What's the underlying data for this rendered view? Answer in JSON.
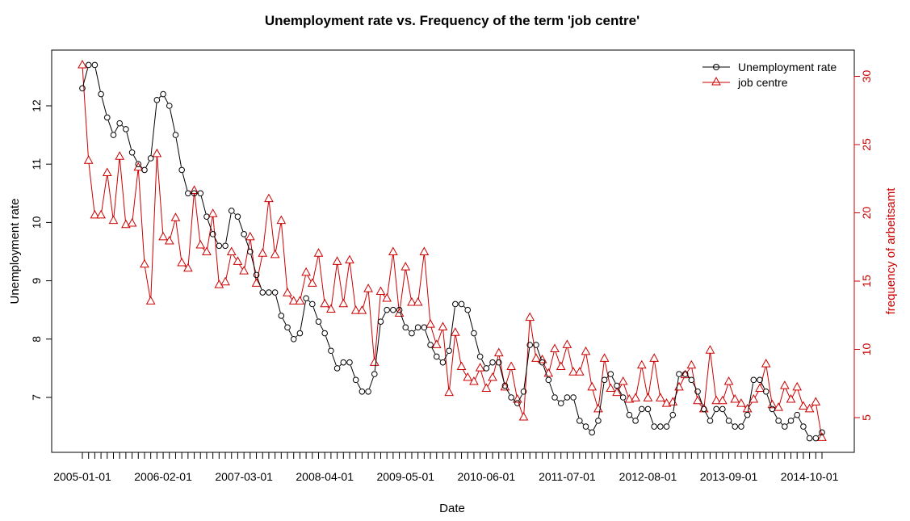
{
  "chart_data": {
    "type": "line",
    "title": "Unemployment rate vs. Frequency of the term 'job centre'",
    "xlabel": "Date",
    "ylabel_left": "Unemployment rate",
    "ylabel_right": "frequency of arbeitsamt",
    "x_tick_labels": [
      "2005-01-01",
      "2006-02-01",
      "2007-03-01",
      "2008-04-01",
      "2009-05-01",
      "2010-06-01",
      "2011-07-01",
      "2012-08-01",
      "2013-09-01",
      "2014-10-01"
    ],
    "x_tick_indices": [
      0,
      13,
      26,
      39,
      52,
      65,
      78,
      91,
      104,
      117
    ],
    "y_left_ticks": [
      7,
      8,
      9,
      10,
      11,
      12
    ],
    "y_right_ticks": [
      5,
      10,
      15,
      20,
      25,
      30
    ],
    "legend_position": "top-right",
    "colors": {
      "unemployment": "#000000",
      "job_centre": "#cc0000",
      "right_axis": "#cc0000"
    },
    "series": [
      {
        "name": "Unemployment rate",
        "axis": "left",
        "marker": "circle",
        "start": "2005-01-01",
        "values": [
          12.3,
          12.7,
          12.7,
          12.2,
          11.8,
          11.5,
          11.7,
          11.6,
          11.2,
          11.0,
          10.9,
          11.1,
          12.1,
          12.2,
          12.0,
          11.5,
          10.9,
          10.5,
          10.5,
          10.5,
          10.1,
          9.8,
          9.6,
          9.6,
          10.2,
          10.1,
          9.8,
          9.5,
          9.1,
          8.8,
          8.8,
          8.8,
          8.4,
          8.2,
          8.0,
          8.1,
          8.7,
          8.6,
          8.3,
          8.1,
          7.8,
          7.5,
          7.6,
          7.6,
          7.3,
          7.1,
          7.1,
          7.4,
          8.3,
          8.5,
          8.5,
          8.5,
          8.2,
          8.1,
          8.2,
          8.2,
          7.9,
          7.7,
          7.6,
          7.8,
          8.6,
          8.6,
          8.5,
          8.1,
          7.7,
          7.5,
          7.6,
          7.6,
          7.2,
          7.0,
          6.9,
          7.1,
          7.9,
          7.9,
          7.6,
          7.3,
          7.0,
          6.9,
          7.0,
          7.0,
          6.6,
          6.5,
          6.4,
          6.6,
          7.3,
          7.4,
          7.2,
          7.0,
          6.7,
          6.6,
          6.8,
          6.8,
          6.5,
          6.5,
          6.5,
          6.7,
          7.4,
          7.4,
          7.3,
          7.1,
          6.8,
          6.6,
          6.8,
          6.8,
          6.6,
          6.5,
          6.5,
          6.7,
          7.3,
          7.3,
          7.1,
          6.8,
          6.6,
          6.5,
          6.6,
          6.7,
          6.5,
          6.3,
          6.3,
          6.4
        ]
      },
      {
        "name": "job centre",
        "axis": "right",
        "marker": "triangle",
        "start": "2005-01-01",
        "values": [
          30.8,
          23.8,
          19.8,
          19.8,
          22.9,
          19.4,
          24.1,
          19.1,
          19.2,
          23.3,
          16.2,
          13.5,
          24.3,
          18.2,
          17.9,
          19.6,
          16.3,
          15.9,
          21.6,
          17.6,
          17.1,
          19.9,
          14.7,
          14.9,
          17.1,
          16.4,
          15.7,
          18.2,
          14.8,
          17.0,
          21.0,
          16.9,
          19.4,
          14.1,
          13.5,
          13.5,
          15.6,
          14.8,
          17.0,
          13.3,
          12.9,
          16.4,
          13.3,
          16.5,
          12.8,
          12.8,
          14.4,
          9.0,
          14.2,
          13.7,
          17.1,
          12.6,
          16.0,
          13.4,
          13.4,
          17.1,
          11.8,
          10.3,
          11.6,
          6.8,
          11.2,
          8.7,
          7.9,
          7.6,
          8.6,
          7.1,
          7.9,
          9.7,
          7.2,
          8.7,
          6.3,
          5.0,
          12.3,
          9.3,
          9.2,
          8.2,
          10.0,
          8.7,
          10.3,
          8.3,
          8.3,
          9.8,
          7.2,
          5.6,
          9.3,
          7.1,
          6.8,
          7.6,
          6.3,
          6.4,
          8.8,
          6.4,
          9.3,
          6.4,
          6.0,
          6.1,
          7.2,
          8.1,
          8.8,
          6.2,
          5.6,
          9.9,
          6.2,
          6.2,
          7.6,
          6.3,
          6.0,
          5.6,
          6.3,
          7.1,
          8.9,
          5.9,
          5.7,
          7.3,
          6.3,
          7.2,
          5.8,
          5.6,
          6.1,
          3.5
        ]
      }
    ]
  }
}
